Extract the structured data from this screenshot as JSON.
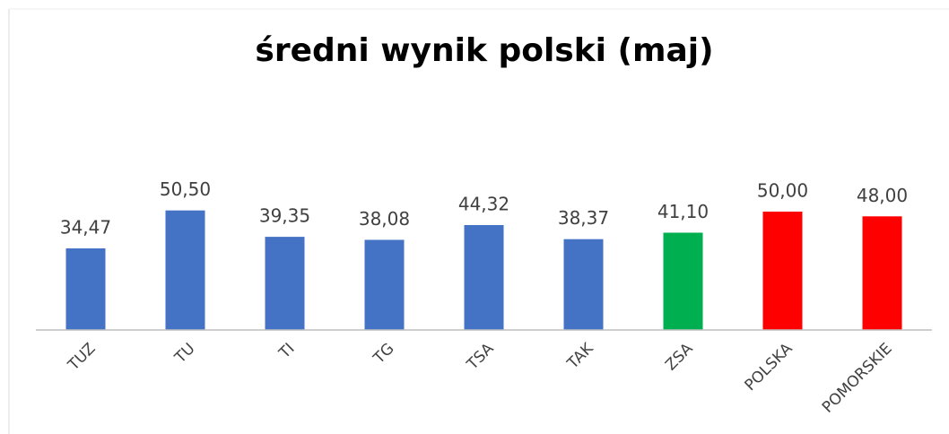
{
  "chart_data": {
    "type": "bar",
    "title": "średni wynik polski (maj)",
    "categories": [
      "TUZ",
      "TU",
      "TI",
      "TG",
      "TSA",
      "TAK",
      "ZSA",
      "POLSKA",
      "POMORSKIE"
    ],
    "values": [
      34.47,
      50.5,
      39.35,
      38.08,
      44.32,
      38.37,
      41.1,
      50.0,
      48.0
    ],
    "value_labels": [
      "34,47",
      "50,50",
      "39,35",
      "38,08",
      "44,32",
      "38,37",
      "41,10",
      "50,00",
      "48,00"
    ],
    "colors": [
      "#4472c4",
      "#4472c4",
      "#4472c4",
      "#4472c4",
      "#4472c4",
      "#4472c4",
      "#00b050",
      "#ff0000",
      "#ff0000"
    ],
    "ylim": [
      0,
      60
    ],
    "grid": false
  }
}
